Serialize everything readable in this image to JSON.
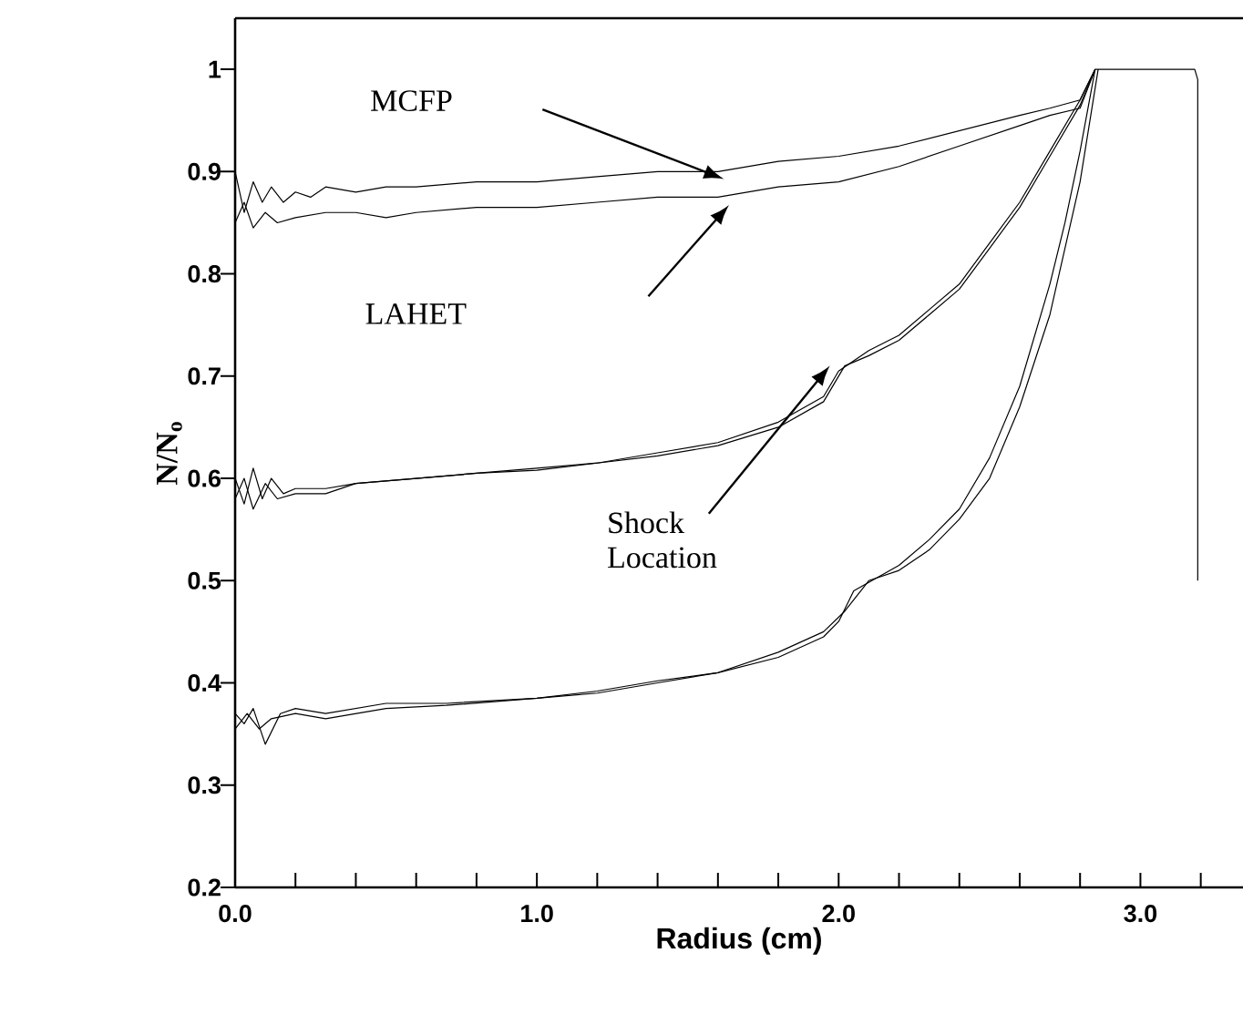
{
  "chart_data": {
    "type": "line",
    "xlabel": "Radius (cm)",
    "ylabel": "N/N$_{o}$",
    "xlim": [
      0,
      3.34
    ],
    "ylim": [
      0.2,
      1.05
    ],
    "xticks": [
      {
        "value": 0,
        "label": "0.0"
      },
      {
        "value": 0.2,
        "label": null
      },
      {
        "value": 0.4,
        "label": null
      },
      {
        "value": 0.6,
        "label": null
      },
      {
        "value": 0.8,
        "label": null
      },
      {
        "value": 1,
        "label": "1.0"
      },
      {
        "value": 1.2,
        "label": null
      },
      {
        "value": 1.4,
        "label": null
      },
      {
        "value": 1.6,
        "label": null
      },
      {
        "value": 1.8,
        "label": null
      },
      {
        "value": 2,
        "label": "2.0"
      },
      {
        "value": 2.2,
        "label": null
      },
      {
        "value": 2.4,
        "label": null
      },
      {
        "value": 2.6,
        "label": null
      },
      {
        "value": 2.8,
        "label": null
      },
      {
        "value": 3,
        "label": "3.0"
      },
      {
        "value": 3.2,
        "label": null
      }
    ],
    "yticks": [
      0.2,
      0.3,
      0.4,
      0.5,
      0.6,
      0.7,
      0.8,
      0.9,
      1
    ],
    "series": [
      {
        "color": "#000000",
        "x": [
          0,
          0.03,
          0.06,
          0.09,
          0.12,
          0.16,
          0.2,
          0.25,
          0.3,
          0.4,
          0.5,
          0.6,
          0.8,
          1.0,
          1.2,
          1.4,
          1.6,
          1.8,
          2.0,
          2.2,
          2.4,
          2.6,
          2.7,
          2.8,
          2.85,
          2.9,
          3.0,
          3.1,
          3.18,
          3.19,
          3.19
        ],
        "values": [
          0.9,
          0.86,
          0.89,
          0.87,
          0.885,
          0.87,
          0.88,
          0.875,
          0.885,
          0.88,
          0.885,
          0.885,
          0.89,
          0.89,
          0.895,
          0.9,
          0.9,
          0.91,
          0.915,
          0.925,
          0.94,
          0.955,
          0.962,
          0.97,
          1.0,
          1.0,
          1.0,
          1.0,
          1.0,
          0.99,
          0.5
        ]
      },
      {
        "color": "#000000",
        "x": [
          0,
          0.03,
          0.06,
          0.1,
          0.14,
          0.2,
          0.3,
          0.4,
          0.5,
          0.6,
          0.8,
          1.0,
          1.2,
          1.4,
          1.6,
          1.8,
          2.0,
          2.2,
          2.4,
          2.6,
          2.7,
          2.8,
          2.85
        ],
        "values": [
          0.85,
          0.87,
          0.845,
          0.86,
          0.85,
          0.855,
          0.86,
          0.86,
          0.855,
          0.86,
          0.865,
          0.865,
          0.87,
          0.875,
          0.875,
          0.885,
          0.89,
          0.905,
          0.925,
          0.945,
          0.955,
          0.962,
          1.0
        ]
      },
      {
        "color": "#000000",
        "x": [
          0,
          0.03,
          0.06,
          0.09,
          0.12,
          0.16,
          0.2,
          0.3,
          0.4,
          0.6,
          0.8,
          1.0,
          1.2,
          1.4,
          1.6,
          1.8,
          1.95,
          2.0,
          2.1,
          2.2,
          2.3,
          2.4,
          2.5,
          2.6,
          2.7,
          2.8,
          2.85
        ],
        "values": [
          0.6,
          0.575,
          0.61,
          0.58,
          0.6,
          0.585,
          0.59,
          0.59,
          0.595,
          0.6,
          0.605,
          0.61,
          0.615,
          0.625,
          0.635,
          0.655,
          0.68,
          0.705,
          0.725,
          0.74,
          0.765,
          0.79,
          0.83,
          0.87,
          0.92,
          0.97,
          1.0
        ]
      },
      {
        "color": "#000000",
        "x": [
          0,
          0.03,
          0.06,
          0.1,
          0.14,
          0.2,
          0.3,
          0.4,
          0.6,
          0.8,
          1.0,
          1.2,
          1.4,
          1.6,
          1.8,
          1.95,
          2.02,
          2.1,
          2.2,
          2.3,
          2.4,
          2.5,
          2.6,
          2.7,
          2.8,
          2.85
        ],
        "values": [
          0.58,
          0.6,
          0.57,
          0.595,
          0.58,
          0.585,
          0.585,
          0.595,
          0.6,
          0.605,
          0.608,
          0.615,
          0.622,
          0.632,
          0.65,
          0.675,
          0.71,
          0.72,
          0.735,
          0.76,
          0.785,
          0.825,
          0.865,
          0.915,
          0.965,
          1.0
        ]
      },
      {
        "color": "#000000",
        "x": [
          0,
          0.03,
          0.06,
          0.1,
          0.15,
          0.2,
          0.3,
          0.5,
          0.7,
          1.0,
          1.2,
          1.4,
          1.6,
          1.8,
          1.95,
          2.0,
          2.05,
          2.2,
          2.3,
          2.4,
          2.5,
          2.6,
          2.7,
          2.75,
          2.8,
          2.85
        ],
        "values": [
          0.37,
          0.36,
          0.375,
          0.34,
          0.37,
          0.375,
          0.37,
          0.38,
          0.38,
          0.385,
          0.39,
          0.4,
          0.41,
          0.425,
          0.445,
          0.46,
          0.49,
          0.515,
          0.54,
          0.57,
          0.62,
          0.69,
          0.79,
          0.85,
          0.92,
          1.0
        ]
      },
      {
        "color": "#000000",
        "x": [
          0,
          0.04,
          0.08,
          0.12,
          0.2,
          0.3,
          0.5,
          0.7,
          1.0,
          1.2,
          1.4,
          1.6,
          1.8,
          1.95,
          2.02,
          2.1,
          2.2,
          2.3,
          2.4,
          2.5,
          2.6,
          2.7,
          2.8,
          2.86
        ],
        "values": [
          0.355,
          0.37,
          0.355,
          0.365,
          0.37,
          0.365,
          0.375,
          0.378,
          0.385,
          0.392,
          0.402,
          0.41,
          0.43,
          0.45,
          0.47,
          0.5,
          0.51,
          0.53,
          0.56,
          0.6,
          0.67,
          0.76,
          0.89,
          1.0
        ]
      }
    ],
    "annotations": [
      "MCFP",
      "LAHET",
      "Shock Location"
    ]
  }
}
